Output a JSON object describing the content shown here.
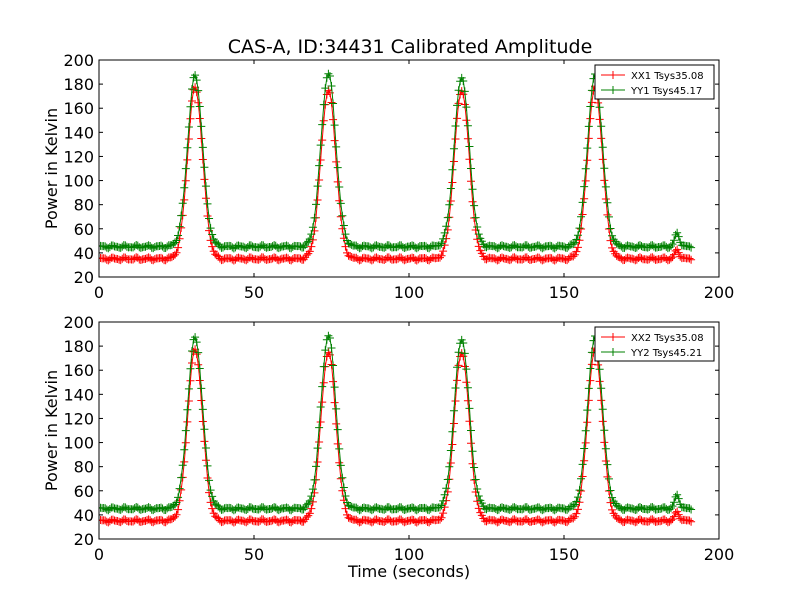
{
  "figure_title": "CAS-A, ID:34431 Calibrated Amplitude",
  "chart_data": [
    {
      "type": "line",
      "title": "",
      "xlabel": "",
      "ylabel": "Power in Kelvin",
      "xlim": [
        0,
        200
      ],
      "ylim": [
        20,
        200
      ],
      "xticks": [
        "0",
        "50",
        "100",
        "150",
        "200"
      ],
      "yticks": [
        "20",
        "40",
        "60",
        "80",
        "100",
        "120",
        "140",
        "160",
        "180",
        "200"
      ],
      "legend_position": "top-right",
      "grid": false,
      "series": [
        {
          "name": "XX1 Tsys35.08",
          "color": "#ff0000",
          "marker": "+",
          "baseline": 35.08,
          "peaks": [
            {
              "t": 31,
              "v": 177
            },
            {
              "t": 74,
              "v": 175
            },
            {
              "t": 117,
              "v": 175
            },
            {
              "t": 160,
              "v": 177
            }
          ],
          "bump": {
            "t": 186.5,
            "v": 42
          }
        },
        {
          "name": "YY1 Tsys45.17",
          "color": "#008000",
          "marker": "+",
          "baseline": 45.17,
          "peaks": [
            {
              "t": 31,
              "v": 187
            },
            {
              "t": 74,
              "v": 189
            },
            {
              "t": 117,
              "v": 186
            },
            {
              "t": 160,
              "v": 187
            }
          ],
          "bump": {
            "t": 186.5,
            "v": 56
          }
        }
      ],
      "x_range": [
        0,
        191
      ]
    },
    {
      "type": "line",
      "title": "",
      "xlabel": "Time (seconds)",
      "ylabel": "Power in Kelvin",
      "xlim": [
        0,
        200
      ],
      "ylim": [
        20,
        200
      ],
      "xticks": [
        "0",
        "50",
        "100",
        "150",
        "200"
      ],
      "yticks": [
        "20",
        "40",
        "60",
        "80",
        "100",
        "120",
        "140",
        "160",
        "180",
        "200"
      ],
      "legend_position": "top-right",
      "grid": false,
      "series": [
        {
          "name": "XX2 Tsys35.08",
          "color": "#ff0000",
          "marker": "+",
          "baseline": 35.08,
          "peaks": [
            {
              "t": 31,
              "v": 177
            },
            {
              "t": 74,
              "v": 175
            },
            {
              "t": 117,
              "v": 175
            },
            {
              "t": 160,
              "v": 177
            }
          ],
          "bump": {
            "t": 186.5,
            "v": 42
          }
        },
        {
          "name": "YY2 Tsys45.21",
          "color": "#008000",
          "marker": "+",
          "baseline": 45.21,
          "peaks": [
            {
              "t": 31,
              "v": 187
            },
            {
              "t": 74,
              "v": 189
            },
            {
              "t": 117,
              "v": 186
            },
            {
              "t": 160,
              "v": 187
            }
          ],
          "bump": {
            "t": 186.5,
            "v": 56
          }
        }
      ],
      "x_range": [
        0,
        191
      ]
    }
  ]
}
